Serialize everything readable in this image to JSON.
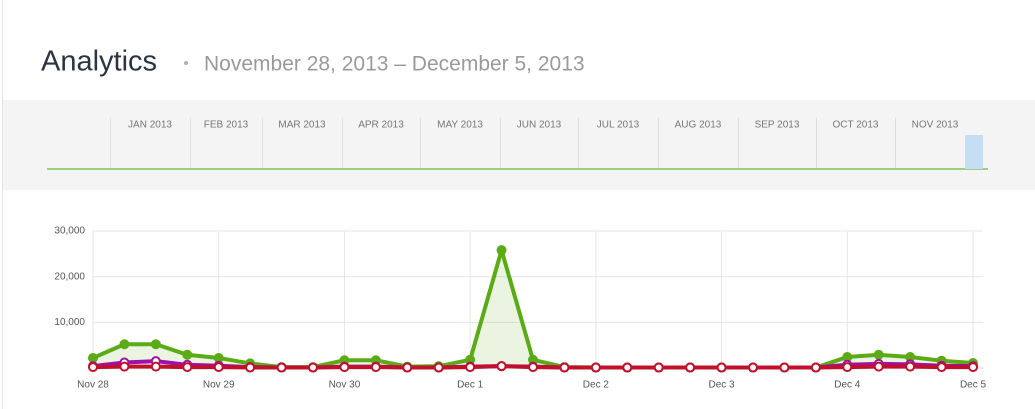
{
  "header": {
    "title": "Analytics",
    "date_range": "November 28, 2013 – December 5, 2013"
  },
  "timeline": {
    "months": [
      "JAN 2013",
      "FEB 2013",
      "MAR 2013",
      "APR 2013",
      "MAY 2013",
      "JUN 2013",
      "JUL 2013",
      "AUG 2013",
      "SEP 2013",
      "OCT 2013",
      "NOV 2013"
    ]
  },
  "chart_data": {
    "type": "line",
    "categories": [
      "Nov 28",
      null,
      null,
      null,
      "Nov 29",
      null,
      null,
      null,
      "Nov 30",
      null,
      null,
      null,
      "Dec 1",
      null,
      null,
      null,
      "Dec 2",
      null,
      null,
      null,
      "Dec 3",
      null,
      null,
      null,
      "Dec 4",
      null,
      null,
      null,
      "Dec 5"
    ],
    "series": [
      {
        "color": "#5aab16",
        "values": [
          2200,
          5200,
          5200,
          2900,
          2200,
          1000,
          200,
          200,
          1700,
          1700,
          300,
          400,
          1800,
          25800,
          1800,
          200,
          100,
          100,
          100,
          100,
          100,
          100,
          100,
          100,
          2400,
          2900,
          2400,
          1600,
          1100
        ]
      },
      {
        "color": "#a010a8",
        "values": [
          400,
          1200,
          1500,
          700,
          500,
          200,
          100,
          100,
          300,
          300,
          100,
          100,
          300,
          400,
          300,
          100,
          100,
          100,
          100,
          100,
          100,
          100,
          100,
          100,
          700,
          900,
          800,
          500,
          400
        ]
      },
      {
        "color": "#c0102a",
        "values": [
          200,
          300,
          300,
          200,
          200,
          100,
          100,
          100,
          200,
          200,
          100,
          100,
          200,
          400,
          200,
          100,
          100,
          100,
          100,
          100,
          100,
          100,
          100,
          100,
          200,
          300,
          300,
          200,
          200
        ]
      }
    ],
    "ylim": [
      0,
      30000
    ],
    "yticks": [
      {
        "value": 10000,
        "label": "10,000"
      },
      {
        "value": 20000,
        "label": "20,000"
      },
      {
        "value": 30000,
        "label": "30,000"
      }
    ],
    "grid": true
  }
}
